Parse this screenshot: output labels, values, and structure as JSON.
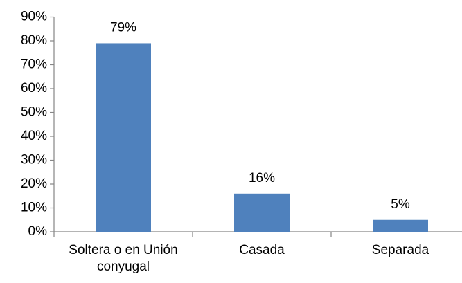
{
  "chart_data": {
    "type": "bar",
    "categories": [
      "Soltera o en Unión conyugal",
      "Casada",
      "Separada"
    ],
    "values": [
      79,
      16,
      5
    ],
    "value_labels": [
      "79%",
      "16%",
      "5%"
    ],
    "color": "#4f81bd",
    "ylim": [
      0,
      90
    ],
    "yticks": [
      {
        "value": 0,
        "label": "0%"
      },
      {
        "value": 10,
        "label": "10%"
      },
      {
        "value": 20,
        "label": "20%"
      },
      {
        "value": 30,
        "label": "30%"
      },
      {
        "value": 40,
        "label": "40%"
      },
      {
        "value": 50,
        "label": "50%"
      },
      {
        "value": 60,
        "label": "60%"
      },
      {
        "value": 70,
        "label": "70%"
      },
      {
        "value": 80,
        "label": "80%"
      },
      {
        "value": 90,
        "label": "90%"
      }
    ],
    "grid": false
  }
}
